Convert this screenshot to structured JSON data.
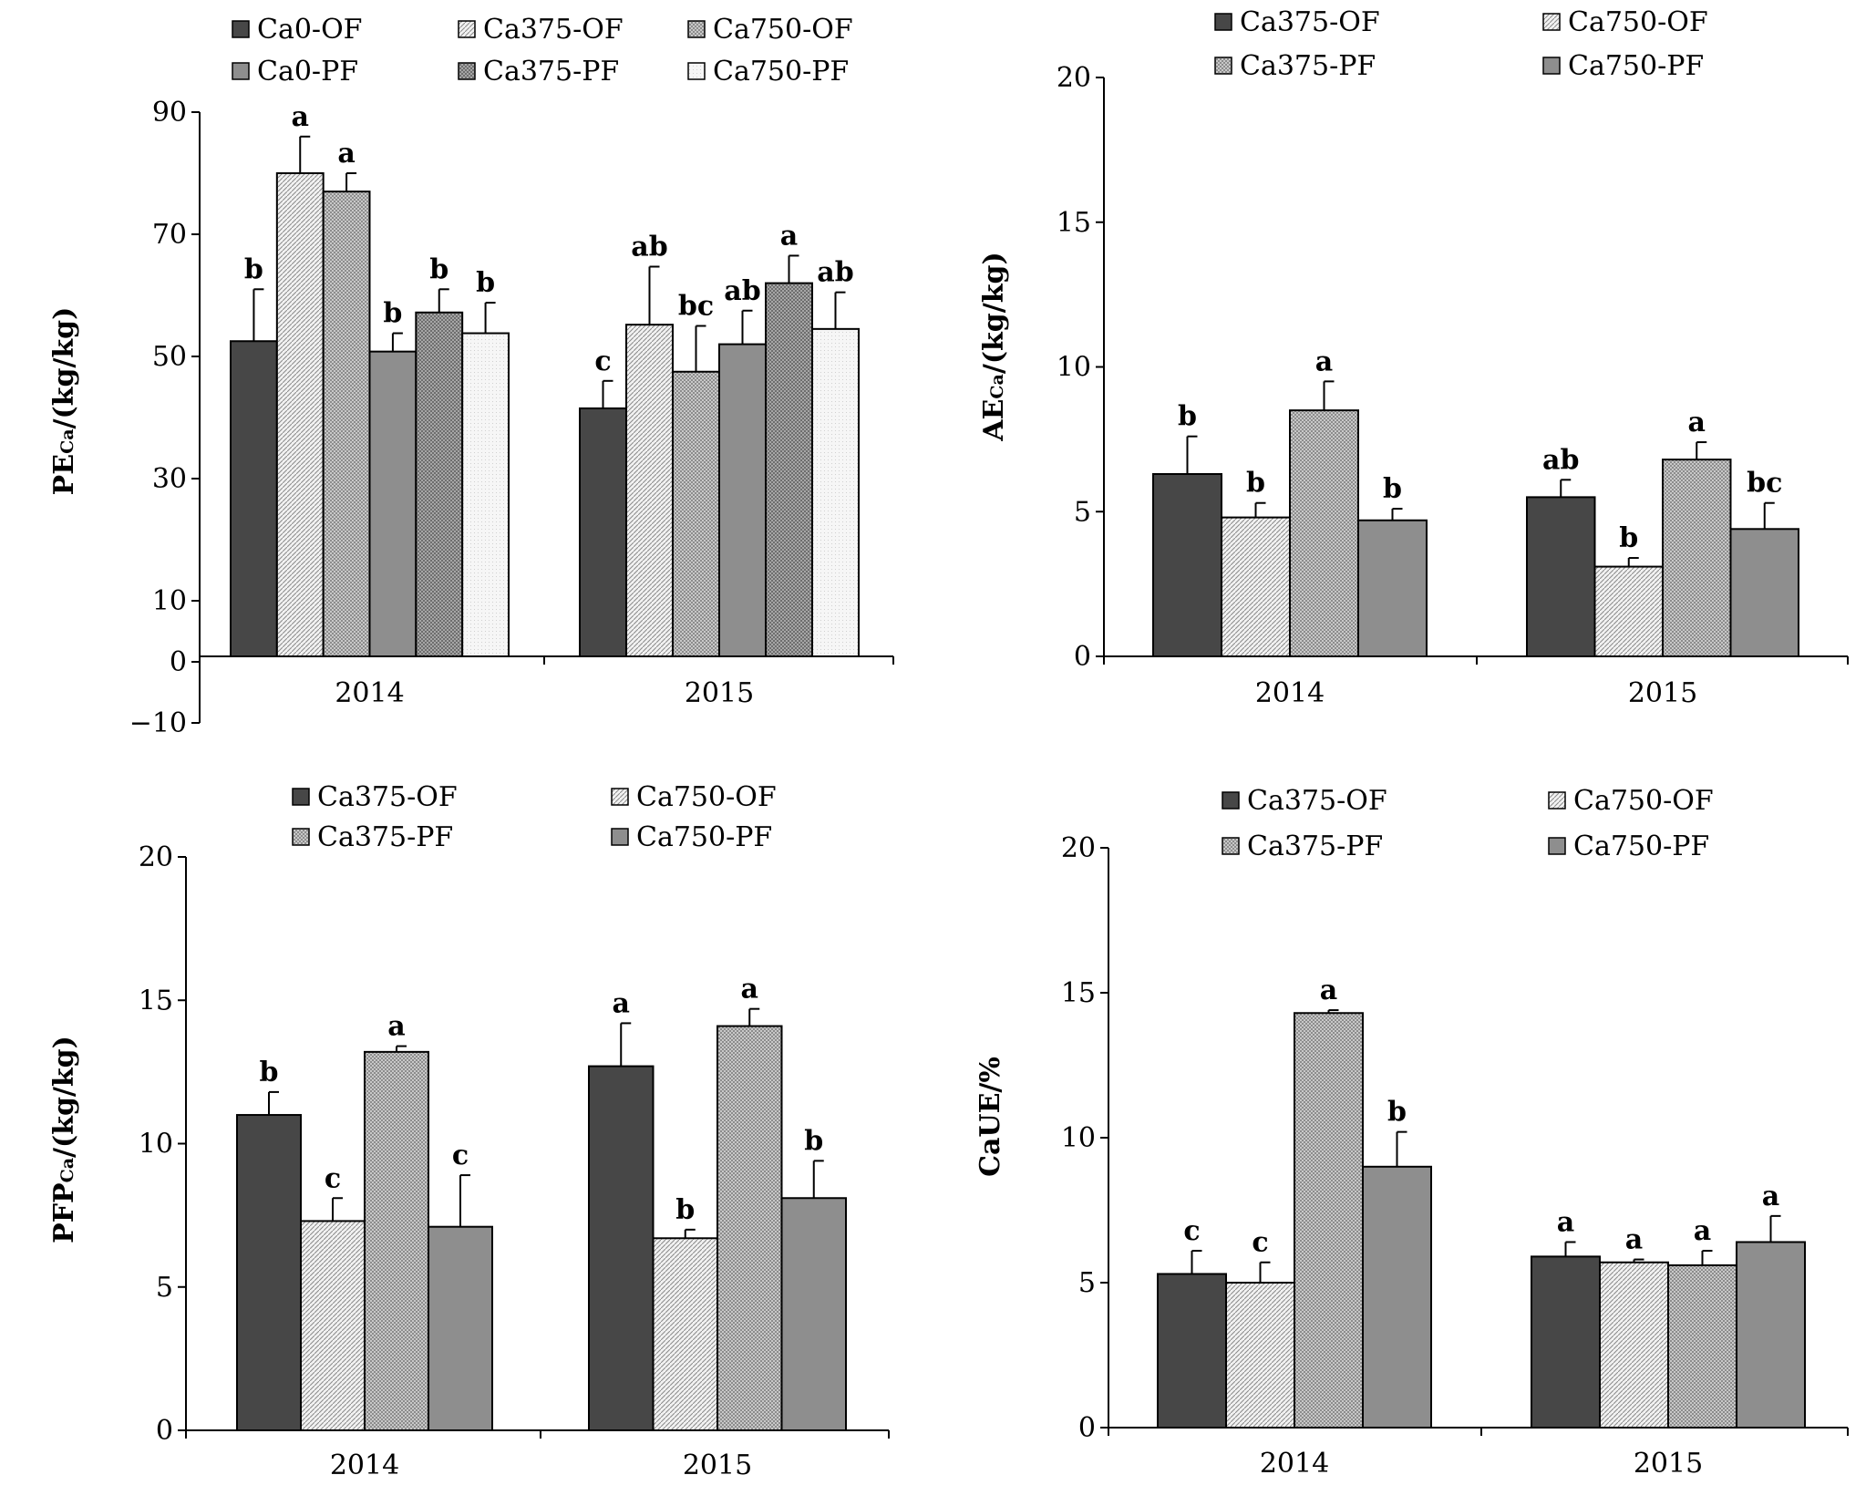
{
  "charts": [
    {
      "id": "pe",
      "chart_data": {
        "type": "bar",
        "categories": [
          "2014",
          "2015"
        ],
        "ylabel": "PECa/(kg/kg)",
        "ylabel_main": "PE",
        "ylabel_sub": "Ca",
        "ylabel_unit": "/(kg/kg)",
        "ylim": [
          -10,
          90
        ],
        "yticks": [
          -10,
          0,
          10,
          30,
          50,
          70,
          90
        ],
        "ytick_labels": [
          "−10",
          "0",
          "10",
          "30",
          "50",
          "70",
          "90"
        ],
        "series": [
          {
            "name": "Ca0-OF",
            "fill": "dark",
            "values": [
              52.5,
              41.5
            ],
            "errors": [
              8.5,
              4.5
            ],
            "letters": [
              "b",
              "c"
            ]
          },
          {
            "name": "Ca375-OF",
            "fill": "hatch",
            "values": [
              80,
              55.2
            ],
            "errors": [
              6,
              9.5
            ],
            "letters": [
              "a",
              "ab"
            ]
          },
          {
            "name": "Ca750-OF",
            "fill": "check",
            "values": [
              77,
              47.5
            ],
            "errors": [
              3,
              7.5
            ],
            "letters": [
              "a",
              "bc"
            ]
          },
          {
            "name": "Ca0-PF",
            "fill": "gray",
            "values": [
              50.8,
              52
            ],
            "errors": [
              3,
              5.5
            ],
            "letters": [
              "b",
              "ab"
            ]
          },
          {
            "name": "Ca375-PF",
            "fill": "dense",
            "values": [
              57.2,
              62
            ],
            "errors": [
              3.8,
              4.5
            ],
            "letters": [
              "b",
              "a"
            ]
          },
          {
            "name": "Ca750-PF",
            "fill": "light",
            "values": [
              53.8,
              54.5
            ],
            "errors": [
              5,
              6
            ],
            "letters": [
              "b",
              "ab"
            ]
          }
        ]
      }
    },
    {
      "id": "ae",
      "chart_data": {
        "type": "bar",
        "categories": [
          "2014",
          "2015"
        ],
        "ylabel": "AECa/(kg/kg)",
        "ylabel_main": "AE",
        "ylabel_sub": "Ca",
        "ylabel_unit": "/(kg/kg)",
        "ylim": [
          0,
          20
        ],
        "yticks": [
          0,
          5,
          10,
          15,
          20
        ],
        "ytick_labels": [
          "0",
          "5",
          "10",
          "15",
          "20"
        ],
        "series": [
          {
            "name": "Ca375-OF",
            "fill": "dark",
            "values": [
              6.3,
              5.5
            ],
            "errors": [
              1.3,
              0.6
            ],
            "letters": [
              "b",
              "ab"
            ]
          },
          {
            "name": "Ca750-OF",
            "fill": "hatch",
            "values": [
              4.8,
              3.1
            ],
            "errors": [
              0.5,
              0.3
            ],
            "letters": [
              "b",
              "b"
            ]
          },
          {
            "name": "Ca375-PF",
            "fill": "check",
            "values": [
              8.5,
              6.8
            ],
            "errors": [
              1.0,
              0.6
            ],
            "letters": [
              "a",
              "a"
            ]
          },
          {
            "name": "Ca750-PF",
            "fill": "gray",
            "values": [
              4.7,
              4.4
            ],
            "errors": [
              0.4,
              0.9
            ],
            "letters": [
              "b",
              "bc"
            ]
          }
        ]
      }
    },
    {
      "id": "pfp",
      "chart_data": {
        "type": "bar",
        "categories": [
          "2014",
          "2015"
        ],
        "ylabel": "PFPCa/(kg/kg)",
        "ylabel_main": "PFP",
        "ylabel_sub": "Ca",
        "ylabel_unit": "/(kg/kg)",
        "ylim": [
          0,
          20
        ],
        "yticks": [
          0,
          5,
          10,
          15,
          20
        ],
        "ytick_labels": [
          "0",
          "5",
          "10",
          "15",
          "20"
        ],
        "series": [
          {
            "name": "Ca375-OF",
            "fill": "dark",
            "values": [
              11.0,
              12.7
            ],
            "errors": [
              0.8,
              1.5
            ],
            "letters": [
              "b",
              "a"
            ]
          },
          {
            "name": "Ca750-OF",
            "fill": "hatch",
            "values": [
              7.3,
              6.7
            ],
            "errors": [
              0.8,
              0.3
            ],
            "letters": [
              "c",
              "b"
            ]
          },
          {
            "name": "Ca375-PF",
            "fill": "check",
            "values": [
              13.2,
              14.1
            ],
            "errors": [
              0.2,
              0.6
            ],
            "letters": [
              "a",
              "a"
            ]
          },
          {
            "name": "Ca750-PF",
            "fill": "gray",
            "values": [
              7.1,
              8.1
            ],
            "errors": [
              1.8,
              1.3
            ],
            "letters": [
              "c",
              "b"
            ]
          }
        ]
      }
    },
    {
      "id": "caue",
      "chart_data": {
        "type": "bar",
        "categories": [
          "2014",
          "2015"
        ],
        "ylabel": "CaUE/%",
        "ylabel_main": "CaUE/%",
        "ylabel_sub": "",
        "ylabel_unit": "",
        "ylim": [
          0,
          20
        ],
        "yticks": [
          0,
          5,
          10,
          15,
          20
        ],
        "ytick_labels": [
          "0",
          "5",
          "10",
          "15",
          "20"
        ],
        "series": [
          {
            "name": "Ca375-OF",
            "fill": "dark",
            "values": [
              5.3,
              5.9
            ],
            "errors": [
              0.8,
              0.5
            ],
            "letters": [
              "c",
              "a"
            ]
          },
          {
            "name": "Ca750-OF",
            "fill": "hatch",
            "values": [
              5.0,
              5.7
            ],
            "errors": [
              0.7,
              0.1
            ],
            "letters": [
              "c",
              "a"
            ]
          },
          {
            "name": "Ca375-PF",
            "fill": "check",
            "values": [
              14.3,
              5.6
            ],
            "errors": [
              0.1,
              0.5
            ],
            "letters": [
              "a",
              "a"
            ]
          },
          {
            "name": "Ca750-PF",
            "fill": "gray",
            "values": [
              9.0,
              6.4
            ],
            "errors": [
              1.2,
              0.9
            ],
            "letters": [
              "b",
              "a"
            ]
          }
        ]
      }
    }
  ]
}
